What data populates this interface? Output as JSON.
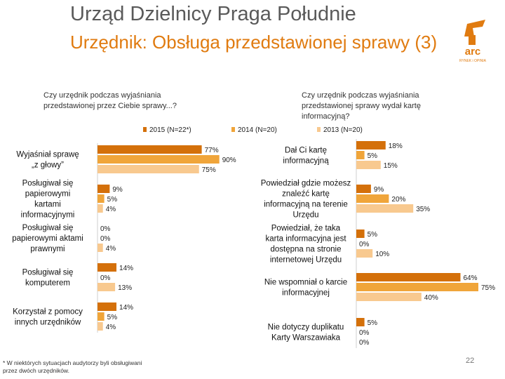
{
  "header": {
    "title": "Urząd Dzielnicy Praga Południe",
    "subtitle": "Urzędnik: Obsługa przedstawionej sprawy (3)"
  },
  "logo": {
    "text": "arc",
    "subtext": "RYNEK i OPINIA"
  },
  "colors": {
    "2015": "#d4700a",
    "2014": "#f0a53a",
    "2013": "#f8c98f",
    "accent": "#e07b10"
  },
  "legend": [
    "2015 (N=22*)",
    "2014 (N=20)",
    "2013 (N=20)"
  ],
  "chart_data": [
    {
      "type": "bar",
      "orientation": "horizontal",
      "question": "Czy urzędnik podczas wyjaśniania przedstawionej przez Ciebie sprawy...?",
      "categories": [
        "Wyjaśniał sprawę „z głowy”",
        "Posługiwał się papierowymi kartami informacyjnymi",
        "Posługiwał się papierowymi aktami prawnymi",
        "Posługiwał się komputerem",
        "Korzystał z pomocy innych urzędników"
      ],
      "series": [
        {
          "name": "2015 (N=22*)",
          "values": [
            77,
            9,
            0,
            14,
            14
          ]
        },
        {
          "name": "2014 (N=20)",
          "values": [
            90,
            5,
            0,
            0,
            5
          ]
        },
        {
          "name": "2013 (N=20)",
          "values": [
            75,
            4,
            4,
            13,
            4
          ]
        }
      ],
      "unit": "%"
    },
    {
      "type": "bar",
      "orientation": "horizontal",
      "question": "Czy urzędnik podczas wyjaśniania przedstawionej sprawy wydał kartę informacyjną?",
      "categories": [
        "Dał Ci kartę informacyjną",
        "Powiedział gdzie możesz znaleźć kartę informacyjną na terenie Urzędu",
        "Powiedział, że taka karta informacyjna jest dostępna na stronie internetowej Urzędu",
        "Nie wspomniał o karcie informacyjnej",
        "Nie dotyczy duplikatu Karty Warszawiaka"
      ],
      "series": [
        {
          "name": "2015 (N=22*)",
          "values": [
            18,
            9,
            5,
            64,
            5
          ]
        },
        {
          "name": "2014 (N=20)",
          "values": [
            5,
            20,
            0,
            75,
            0
          ]
        },
        {
          "name": "2013 (N=20)",
          "values": [
            15,
            35,
            10,
            40,
            0
          ]
        }
      ],
      "unit": "%"
    }
  ],
  "footnote": "* W niektórych sytuacjach audytorzy byli obsługiwani przez dwóch urzędników.",
  "page_number": "22"
}
